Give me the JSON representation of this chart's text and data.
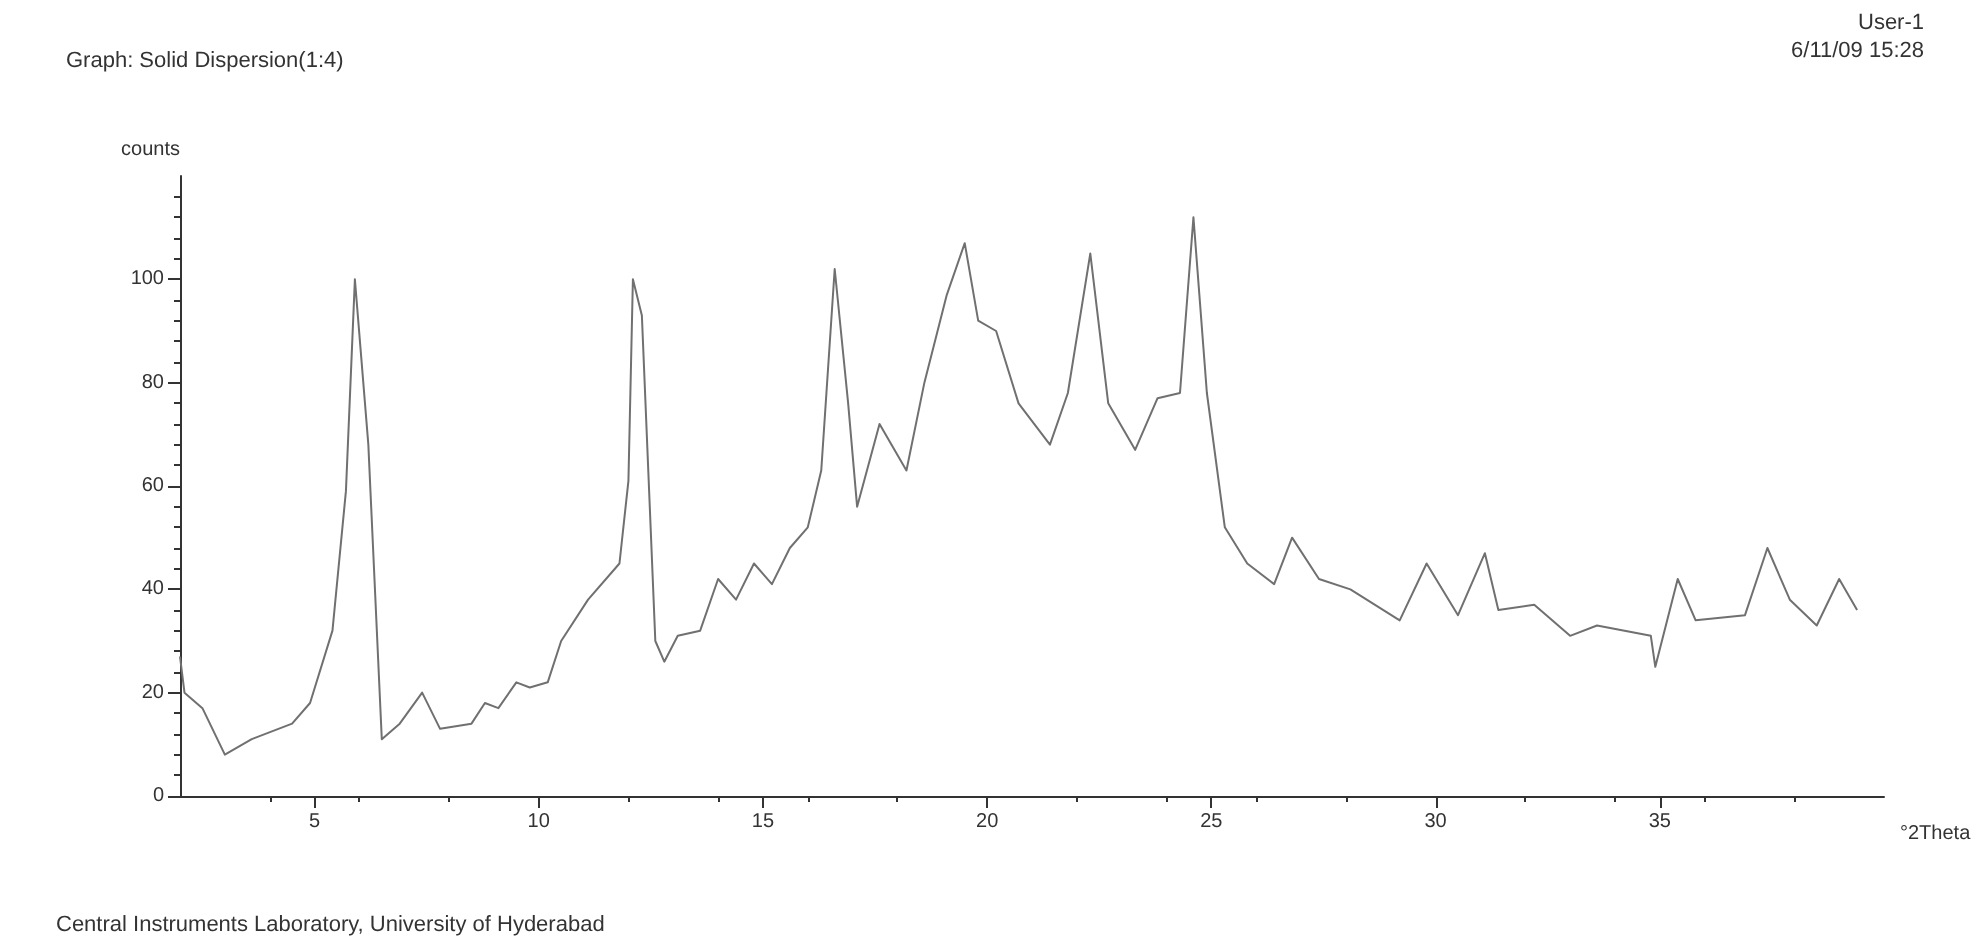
{
  "chart_data": {
    "type": "line",
    "title": "Graph: Solid Dispersion(1:4)",
    "xlabel": "°2Theta",
    "ylabel": "counts",
    "annotations": [
      "User-1",
      "6/11/09 15:28",
      "Central Instruments Laboratory, University of Hyderabad"
    ],
    "x": [
      2,
      2.1,
      2.5,
      3.0,
      3.6,
      4.5,
      4.9,
      5.4,
      5.7,
      5.9,
      6.2,
      6.5,
      6.9,
      7.4,
      7.8,
      8.5,
      8.8,
      9.1,
      9.5,
      9.8,
      10.2,
      10.5,
      11.1,
      11.8,
      12.0,
      12.1,
      12.3,
      12.6,
      12.8,
      13.1,
      13.6,
      14.0,
      14.4,
      14.8,
      15.2,
      15.6,
      16.0,
      16.3,
      16.6,
      16.9,
      17.1,
      17.6,
      18.2,
      18.6,
      19.1,
      19.5,
      19.8,
      20.2,
      20.7,
      21.4,
      21.8,
      22.3,
      22.7,
      23.3,
      23.8,
      24.3,
      24.6,
      24.9,
      25.3,
      25.8,
      26.4,
      26.8,
      27.4,
      28.1,
      29.2,
      29.8,
      30.5,
      31.1,
      31.4,
      32.2,
      33.0,
      33.6,
      34.8,
      34.9,
      35.4,
      35.8,
      36.9,
      37.4,
      37.9,
      38.5,
      39.0,
      39.4
    ],
    "series": [
      {
        "color": "#707070",
        "values": [
          27,
          20,
          17,
          8,
          11,
          14,
          18,
          32,
          59,
          100,
          68,
          11,
          14,
          20,
          13,
          14,
          18,
          17,
          22,
          21,
          22,
          30,
          38,
          45,
          61,
          100,
          93,
          30,
          26,
          31,
          32,
          42,
          38,
          45,
          41,
          48,
          52,
          63,
          102,
          76,
          56,
          72,
          63,
          80,
          97,
          107,
          92,
          90,
          76,
          68,
          78,
          105,
          76,
          67,
          77,
          78,
          112,
          78,
          52,
          45,
          41,
          50,
          42,
          40,
          34,
          45,
          35,
          47,
          36,
          37,
          31,
          33,
          31,
          25,
          42,
          34,
          35,
          48,
          38,
          33,
          42,
          36
        ]
      }
    ],
    "xlim": [
      2,
      40
    ],
    "xticks": [
      5,
      10,
      15,
      20,
      25,
      30,
      35
    ],
    "ylim": [
      0,
      120
    ],
    "yticks": [
      0,
      20,
      40,
      60,
      80,
      100
    ],
    "grid": false,
    "marker": "none",
    "line_style": "solid"
  }
}
